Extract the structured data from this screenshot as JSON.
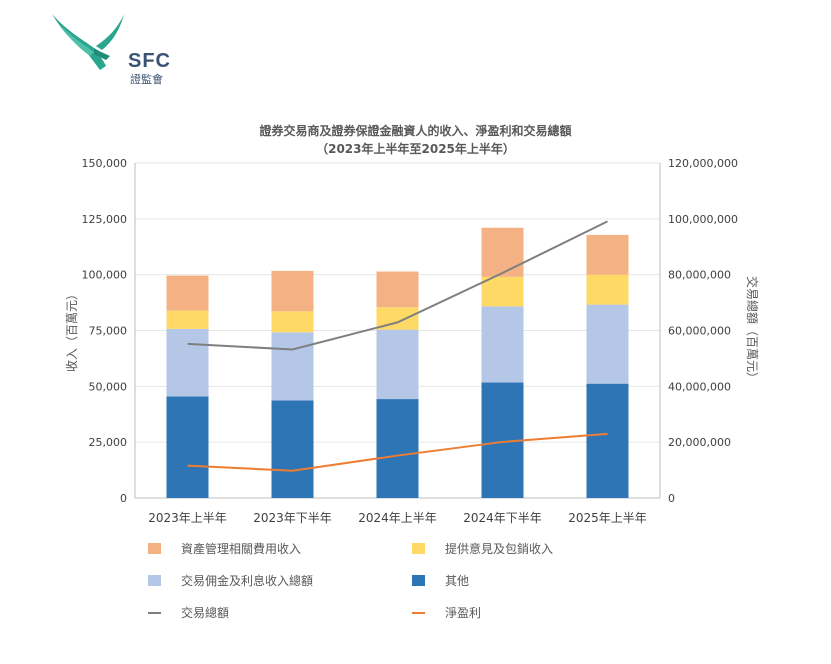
{
  "logo": {
    "text": "SFC",
    "subtext": "證監會",
    "color": "#2aa58e"
  },
  "chart_data": {
    "type": "bar",
    "stacked": true,
    "title": "證券交易商及證券保證金融資人的收入、淨盈利和交易總額",
    "subtitle": "（2023年上半年至2025年上半年）",
    "ylabel": "收入（百萬元）",
    "y2label": "交易總額（百萬元）",
    "ylim": [
      0,
      150000
    ],
    "y2lim": [
      0,
      120000000
    ],
    "yticks": [
      "0",
      "25,000",
      "50,000",
      "75,000",
      "100,000",
      "125,000",
      "150,000"
    ],
    "y2ticks": [
      "0",
      "20,000,000",
      "40,000,000",
      "60,000,000",
      "80,000,000",
      "100,000,000",
      "120,000,000"
    ],
    "grid": true,
    "legend_position": "bottom",
    "categories": [
      "2023年上半年",
      "2023年下半年",
      "2024年上半年",
      "2024年下半年",
      "2025年上半年"
    ],
    "series": [
      {
        "name": "其他",
        "type": "bar",
        "color": "#2e75b6",
        "values": [
          45500,
          43700,
          44300,
          51700,
          51200
        ]
      },
      {
        "name": "交易佣金及利息收入總額",
        "type": "bar",
        "color": "#b4c7e7",
        "values": [
          30200,
          30500,
          31100,
          34100,
          35400
        ]
      },
      {
        "name": "提供意見及包銷收入",
        "type": "bar",
        "color": "#ffd966",
        "values": [
          8200,
          9400,
          10000,
          13200,
          13400
        ]
      },
      {
        "name": "資產管理相關費用收入",
        "type": "bar",
        "color": "#f4b183",
        "values": [
          15700,
          18100,
          16000,
          22000,
          17800
        ]
      },
      {
        "name": "交易總額",
        "type": "line",
        "axis": "right",
        "color": "#7f7f7f",
        "values": [
          55200000,
          53200000,
          62900000,
          80600000,
          99100000
        ]
      },
      {
        "name": "淨盈利",
        "type": "line",
        "axis": "left",
        "color": "#ed7d31",
        "values": [
          14500,
          12200,
          19000,
          25100,
          28700
        ]
      }
    ],
    "legend_order": [
      3,
      2,
      1,
      0,
      4,
      5
    ]
  }
}
